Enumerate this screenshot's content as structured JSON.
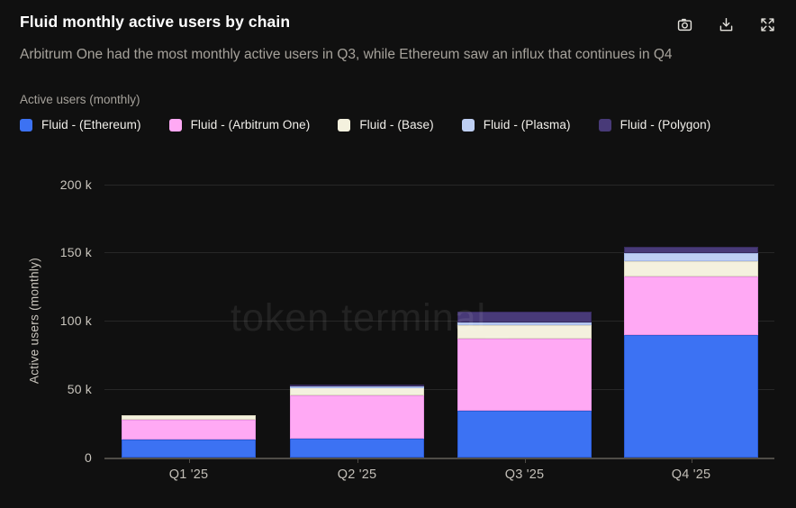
{
  "header": {
    "title": "Fluid monthly active users by chain",
    "subtitle": "Arbitrum One had the most monthly active users in Q3, while Ethereum saw an influx that continues in Q4"
  },
  "legend": {
    "label": "Active users (monthly)"
  },
  "colors": {
    "background": "#101010",
    "title_text": "#ffffff",
    "subtitle_text": "#a6a29b",
    "axis_label_text": "#c9c5bd",
    "gridline": "#272727",
    "axis_line": "#4f4c47"
  },
  "chart_data": {
    "type": "bar",
    "stacked": true,
    "title": "Fluid monthly active users by chain",
    "categories": [
      "Q1 '25",
      "Q2 '25",
      "Q3 '25",
      "Q4 '25"
    ],
    "unit": "thousands of monthly active users",
    "series": [
      {
        "name": "Fluid - (Ethereum)",
        "color": "#3c72f3",
        "border": "#2b5bd6",
        "values": [
          13.2,
          13.7,
          34.6,
          89.4
        ]
      },
      {
        "name": "Fluid - (Arbitrum One)",
        "color": "#ffa9f4",
        "border": "#ea93e3",
        "values": [
          14.4,
          31.6,
          52.1,
          43.0
        ]
      },
      {
        "name": "Fluid - (Base)",
        "color": "#f4f1de",
        "border": "#dcd8c0",
        "values": [
          3.3,
          6.0,
          9.9,
          11.5
        ]
      },
      {
        "name": "Fluid - (Plasma)",
        "color": "#becff3",
        "border": "#a5b9e8",
        "values": [
          0,
          0.5,
          2.0,
          5.5
        ]
      },
      {
        "name": "Fluid - (Polygon)",
        "color": "#483a78",
        "border": "#362a5c",
        "values": [
          0,
          1.5,
          8.4,
          4.6
        ]
      }
    ],
    "totals": [
      30.9,
      53.3,
      107.0,
      154.0
    ],
    "ylabel": "Active users (monthly)",
    "ytick_values": [
      0,
      50,
      100,
      150,
      200
    ],
    "ytick_labels": [
      "0",
      "50 k",
      "100 k",
      "150 k",
      "200 k"
    ],
    "ylim": [
      0,
      200
    ],
    "grid": true,
    "legend_position": "top",
    "watermark": "token terminal_"
  }
}
